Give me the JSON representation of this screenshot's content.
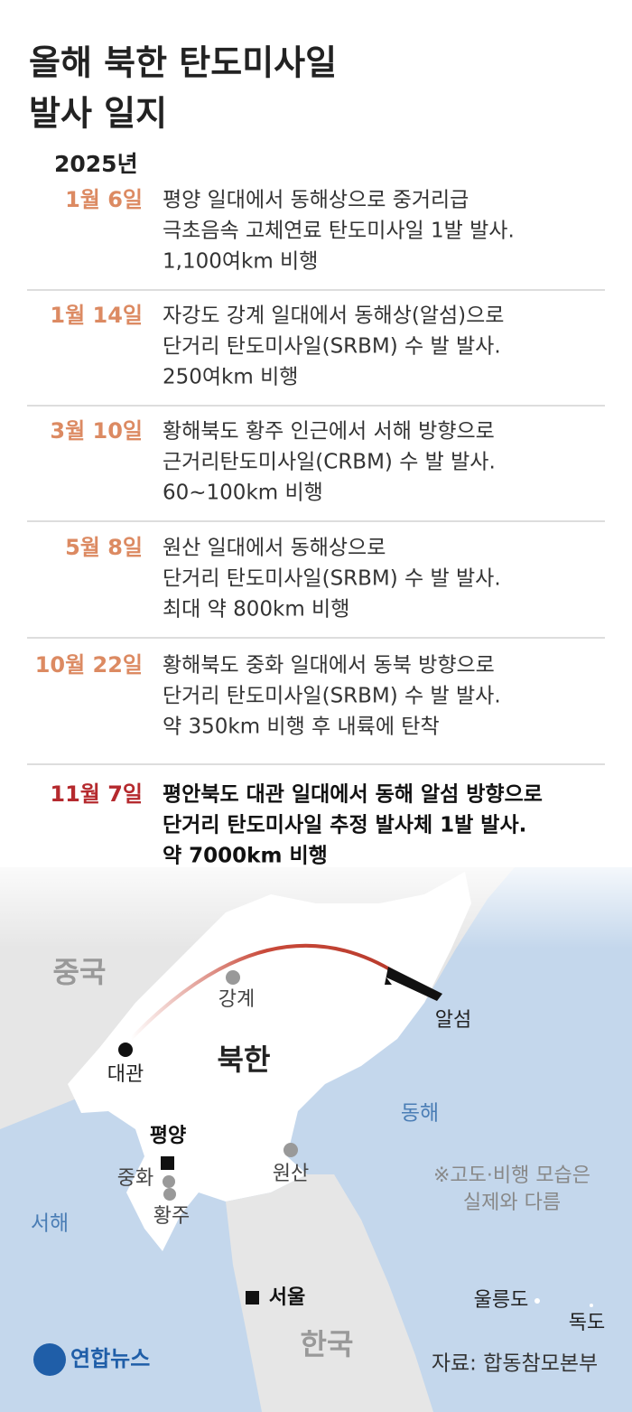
{
  "header": {
    "title_lines": [
      "올해 북한 탄도미사일",
      "발사 일지"
    ],
    "year": "2025년"
  },
  "entries": [
    {
      "date": "1월 6일",
      "lines": [
        "평양 일대에서 동해상으로 중거리급",
        "극초음속 고체연료 탄도미사일 1발 발사.",
        "1,100여km 비행"
      ]
    },
    {
      "date": "1월 14일",
      "lines": [
        "자강도 강계 일대에서 동해상(알섬)으로",
        "단거리 탄도미사일(SRBM) 수 발 발사.",
        "250여km 비행"
      ]
    },
    {
      "date": "3월 10일",
      "lines": [
        "황해북도 황주 인근에서 서해 방향으로",
        "근거리탄도미사일(CRBM) 수 발 발사.",
        "60~100km 비행"
      ]
    },
    {
      "date": "5월 8일",
      "lines": [
        "원산 일대에서 동해상으로",
        "단거리 탄도미사일(SRBM) 수 발 발사.",
        "최대 약 800km 비행"
      ]
    },
    {
      "date": "10월 22일",
      "lines": [
        "황해북도 중화 일대에서 동북 방향으로",
        "단거리 탄도미사일(SRBM) 수 발 발사.",
        "약 350km 비행 후 내륙에 탄착"
      ]
    },
    {
      "date": "11월 7일",
      "highlight": true,
      "lines": [
        "평안북도 대관 일대에서 동해 알섬 방향으로",
        "단거리 탄도미사일 추정 발사체 1발 발사.",
        "약 7000km 비행"
      ]
    }
  ],
  "map": {
    "china": "중국",
    "north_korea": "북한",
    "south_korea": "한국",
    "east_sea": "동해",
    "west_sea": "서해",
    "places": {
      "ganggye": "강계",
      "daegwan": "대관",
      "pyongyang": "평양",
      "junghwa": "중화",
      "hwangju": "황주",
      "wonsan": "원산",
      "alseom": "알섬",
      "seoul": "서울",
      "ulleungdo": "울릉도",
      "dokdo": "독도"
    },
    "note_lines": [
      "※고도·비행 모습은",
      "실제와 다름"
    ]
  },
  "footer": {
    "logo": "연합뉴스",
    "source": "자료: 합동참모본부"
  }
}
